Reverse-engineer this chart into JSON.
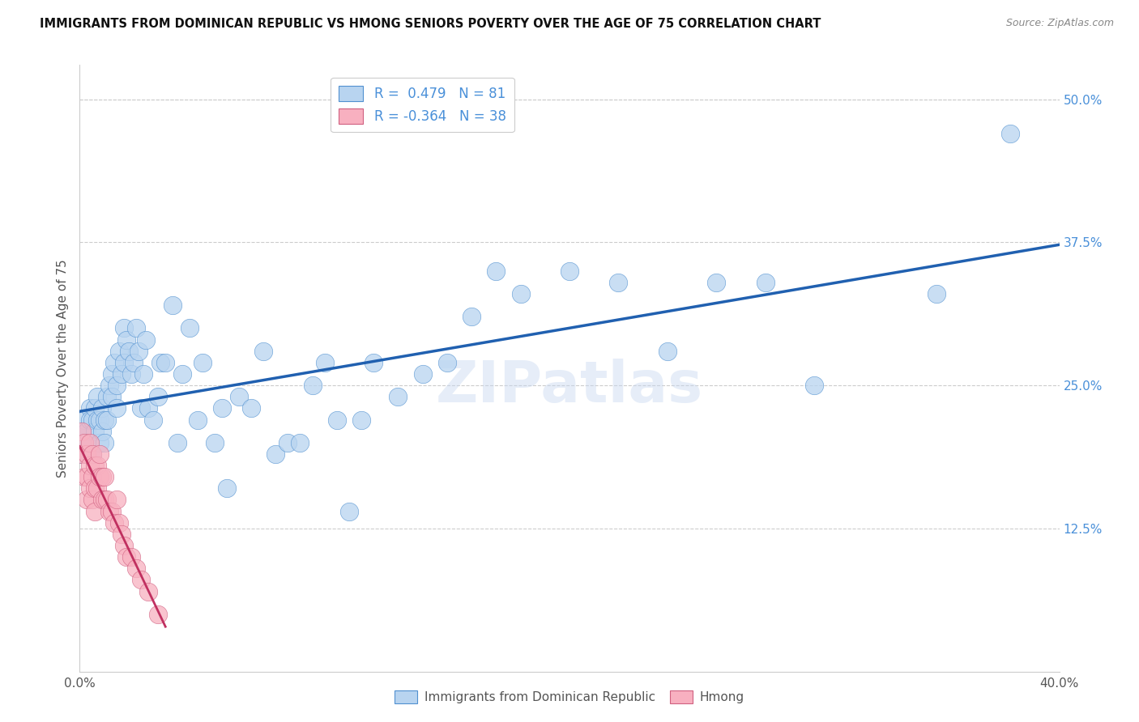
{
  "title": "IMMIGRANTS FROM DOMINICAN REPUBLIC VS HMONG SENIORS POVERTY OVER THE AGE OF 75 CORRELATION CHART",
  "source": "Source: ZipAtlas.com",
  "ylabel": "Seniors Poverty Over the Age of 75",
  "xlim": [
    0.0,
    0.4
  ],
  "ylim": [
    0.0,
    0.53
  ],
  "blue_color": "#b8d4f0",
  "blue_edge_color": "#5090d0",
  "blue_line_color": "#2060b0",
  "pink_color": "#f8b0c0",
  "pink_edge_color": "#d06080",
  "pink_line_color": "#c03060",
  "R_blue": 0.479,
  "N_blue": 81,
  "R_pink": -0.364,
  "N_pink": 38,
  "watermark": "ZIPatlas",
  "blue_x": [
    0.001,
    0.001,
    0.002,
    0.002,
    0.003,
    0.003,
    0.004,
    0.004,
    0.005,
    0.005,
    0.006,
    0.006,
    0.007,
    0.007,
    0.008,
    0.008,
    0.009,
    0.009,
    0.01,
    0.01,
    0.011,
    0.011,
    0.012,
    0.013,
    0.013,
    0.014,
    0.015,
    0.015,
    0.016,
    0.017,
    0.018,
    0.018,
    0.019,
    0.02,
    0.021,
    0.022,
    0.023,
    0.024,
    0.025,
    0.026,
    0.027,
    0.028,
    0.03,
    0.032,
    0.033,
    0.035,
    0.038,
    0.04,
    0.042,
    0.045,
    0.048,
    0.05,
    0.055,
    0.058,
    0.06,
    0.065,
    0.07,
    0.075,
    0.08,
    0.085,
    0.09,
    0.095,
    0.1,
    0.105,
    0.11,
    0.115,
    0.12,
    0.13,
    0.14,
    0.15,
    0.16,
    0.17,
    0.18,
    0.2,
    0.22,
    0.24,
    0.26,
    0.28,
    0.3,
    0.35,
    0.38
  ],
  "blue_y": [
    0.21,
    0.19,
    0.22,
    0.2,
    0.21,
    0.2,
    0.23,
    0.22,
    0.22,
    0.19,
    0.23,
    0.21,
    0.24,
    0.22,
    0.22,
    0.2,
    0.23,
    0.21,
    0.22,
    0.2,
    0.24,
    0.22,
    0.25,
    0.26,
    0.24,
    0.27,
    0.25,
    0.23,
    0.28,
    0.26,
    0.3,
    0.27,
    0.29,
    0.28,
    0.26,
    0.27,
    0.3,
    0.28,
    0.23,
    0.26,
    0.29,
    0.23,
    0.22,
    0.24,
    0.27,
    0.27,
    0.32,
    0.2,
    0.26,
    0.3,
    0.22,
    0.27,
    0.2,
    0.23,
    0.16,
    0.24,
    0.23,
    0.28,
    0.19,
    0.2,
    0.2,
    0.25,
    0.27,
    0.22,
    0.14,
    0.22,
    0.27,
    0.24,
    0.26,
    0.27,
    0.31,
    0.35,
    0.33,
    0.35,
    0.34,
    0.28,
    0.34,
    0.34,
    0.25,
    0.33,
    0.47
  ],
  "pink_x": [
    0.001,
    0.001,
    0.002,
    0.002,
    0.003,
    0.003,
    0.003,
    0.004,
    0.004,
    0.004,
    0.005,
    0.005,
    0.005,
    0.006,
    0.006,
    0.006,
    0.007,
    0.007,
    0.008,
    0.008,
    0.009,
    0.009,
    0.01,
    0.01,
    0.011,
    0.012,
    0.013,
    0.014,
    0.015,
    0.016,
    0.017,
    0.018,
    0.019,
    0.021,
    0.023,
    0.025,
    0.028,
    0.032
  ],
  "pink_y": [
    0.21,
    0.19,
    0.2,
    0.17,
    0.19,
    0.17,
    0.15,
    0.2,
    0.18,
    0.16,
    0.19,
    0.17,
    0.15,
    0.18,
    0.16,
    0.14,
    0.18,
    0.16,
    0.19,
    0.17,
    0.17,
    0.15,
    0.17,
    0.15,
    0.15,
    0.14,
    0.14,
    0.13,
    0.15,
    0.13,
    0.12,
    0.11,
    0.1,
    0.1,
    0.09,
    0.08,
    0.07,
    0.05
  ]
}
